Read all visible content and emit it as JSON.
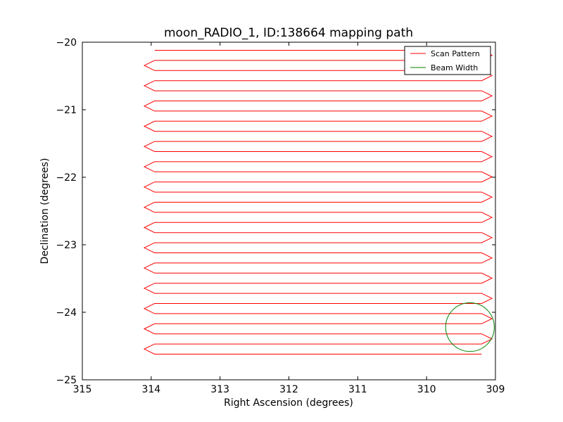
{
  "chart_data": {
    "type": "line",
    "title": "moon_RADIO_1, ID:138664 mapping path",
    "xlabel": "Right Ascension (degrees)",
    "ylabel": "Declination (degrees)",
    "xlim": [
      315,
      309
    ],
    "ylim": [
      -25,
      -20
    ],
    "x_ticks": [
      315,
      314,
      313,
      312,
      311,
      310,
      309
    ],
    "y_ticks": [
      -20,
      -21,
      -22,
      -23,
      -24,
      -25
    ],
    "x_tick_labels": [
      "315",
      "314",
      "313",
      "312",
      "311",
      "310",
      "309"
    ],
    "y_tick_labels": [
      "−20",
      "−21",
      "−22",
      "−23",
      "−24",
      "−25"
    ],
    "grid": false,
    "legend": {
      "location": "top-right",
      "entries": [
        "Scan Pattern",
        "Beam Width"
      ]
    },
    "series": [
      {
        "name": "Scan Pattern",
        "color": "#ff0000",
        "scan_rows_dec": [
          -20.12,
          -20.27,
          -20.42,
          -20.57,
          -20.72,
          -20.87,
          -21.02,
          -21.17,
          -21.32,
          -21.47,
          -21.62,
          -21.77,
          -21.92,
          -22.07,
          -22.22,
          -22.37,
          -22.52,
          -22.67,
          -22.82,
          -22.97,
          -23.12,
          -23.27,
          -23.42,
          -23.57,
          -23.72,
          -23.87,
          -24.02,
          -24.17,
          -24.32,
          -24.47,
          -24.62
        ],
        "ra_start": 313.95,
        "ra_end": 309.2,
        "ra_turn_west": 314.1,
        "ra_turn_east": 309.05
      },
      {
        "name": "Beam Width",
        "color": "#008000",
        "center_ra": 309.37,
        "center_dec": -24.22,
        "radius_deg": 0.36
      }
    ]
  }
}
